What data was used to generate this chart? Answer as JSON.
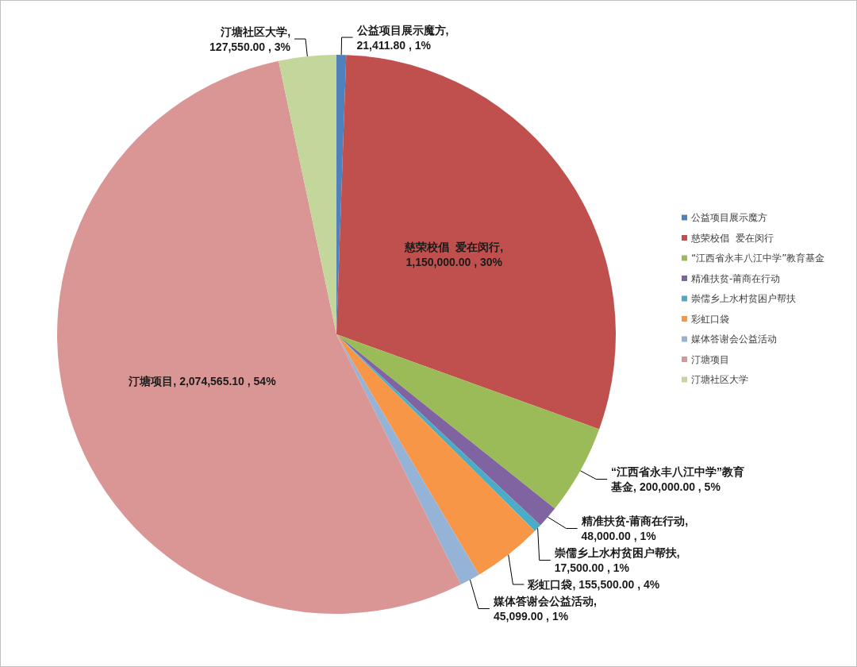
{
  "chart_data": {
    "type": "pie",
    "categories": [
      "公益项目展示魔方",
      "慈荣校倡  爱在闵行",
      "“江西省永丰八江中学”教育基金",
      "精准扶贫-莆商在行动",
      "崇儒乡上水村贫困户帮扶",
      "彩虹口袋",
      "媒体答谢会公益活动",
      "汀塘项目",
      "汀塘社区大学"
    ],
    "values": [
      21411.8,
      1150000,
      200000,
      48000,
      17500,
      155500,
      45099,
      2074565.1,
      127550
    ],
    "colors": [
      "#4f81bd",
      "#c0504d",
      "#9bbb59",
      "#8064a2",
      "#4bacc6",
      "#f79646",
      "#95b3d7",
      "#d99694",
      "#c3d69b"
    ],
    "value_labels": [
      "公益项目展示魔方, 21,411.80 , 1%",
      "慈荣校倡  爱在闵行, 1,150,000.00 , 30%",
      "“江西省永丰八江中学”教育基金, 200,000.00 , 5%",
      "精准扶贫-莆商在行动, 48,000.00 , 1%",
      "崇儒乡上水村贫困户帮扶, 17,500.00 , 1%",
      "彩虹口袋, 155,500.00 , 4%",
      "媒体答谢会公益活动, 45,099.00 , 1%",
      "汀塘项目, 2,074,565.10 , 54%",
      "汀塘社区大学, 127,550.00 , 3%"
    ],
    "legend": "right"
  }
}
